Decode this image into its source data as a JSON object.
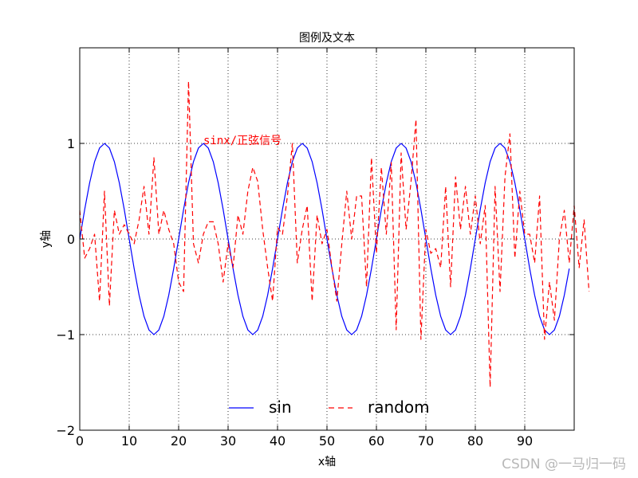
{
  "chart_data": {
    "type": "line",
    "title": "图例及文本",
    "xlabel": "x轴",
    "ylabel": "y轴",
    "xlim": [
      0,
      100
    ],
    "ylim": [
      -2,
      2
    ],
    "xticks": [
      0,
      10,
      20,
      30,
      40,
      50,
      60,
      70,
      80,
      90
    ],
    "xtick_labels": [
      "0",
      "10",
      "20",
      "30",
      "40",
      "50",
      "60",
      "70",
      "80",
      "90"
    ],
    "yticks": [
      -2,
      -1,
      0,
      1
    ],
    "ytick_labels": [
      "−2",
      "−1",
      "0",
      "1"
    ],
    "grid": true,
    "legend_position": "lower center",
    "series": [
      {
        "name": "sin",
        "color": "#0000ff",
        "line_style": "solid",
        "function": "sin",
        "period": 20,
        "amplitude": 1,
        "x_start": 0,
        "x_end": 99,
        "x_step": 1
      },
      {
        "name": "random",
        "color": "#ff0000",
        "line_style": "dashed",
        "x_start": 0,
        "x_step": 1,
        "values": [
          0.3,
          -0.2,
          -0.1,
          0.05,
          -0.65,
          0.5,
          -0.7,
          0.3,
          0.05,
          0.15,
          0.05,
          -0.05,
          0.2,
          0.55,
          0.05,
          0.85,
          0.05,
          0.3,
          0.1,
          -0.05,
          -0.45,
          -0.55,
          1.65,
          -0.05,
          -0.25,
          0.05,
          0.18,
          0.18,
          -0.05,
          -0.45,
          -0.05,
          -0.3,
          0.25,
          0.05,
          0.5,
          0.75,
          0.6,
          0.1,
          -0.3,
          -0.65,
          0.12,
          0.05,
          0.45,
          1.0,
          -0.25,
          0.1,
          0.35,
          -0.65,
          0.25,
          -0.05,
          0.1,
          -0.3,
          -0.65,
          -0.05,
          0.5,
          0.0,
          0.45,
          0.45,
          -0.5,
          0.85,
          -0.15,
          0.75,
          0.05,
          0.8,
          -0.95,
          0.9,
          0.1,
          0.6,
          1.25,
          -1.05,
          0.1,
          -0.15,
          -0.1,
          -0.3,
          0.55,
          -0.5,
          0.65,
          0.1,
          0.55,
          0.05,
          0.45,
          -0.05,
          0.35,
          -1.55,
          0.55,
          -0.55,
          0.65,
          1.1,
          -0.2,
          0.5,
          0.05,
          0.05,
          -0.25,
          0.45,
          -1.05,
          -0.45,
          -0.85,
          0.0,
          0.3,
          -0.25,
          0.35,
          -0.3,
          0.2,
          -0.55
        ]
      }
    ],
    "annotations": [
      {
        "text": "sinx/正弦信号",
        "x": 25,
        "y": 1.0,
        "color": "#ff0000"
      }
    ]
  },
  "watermark": "CSDN @一马归一码"
}
